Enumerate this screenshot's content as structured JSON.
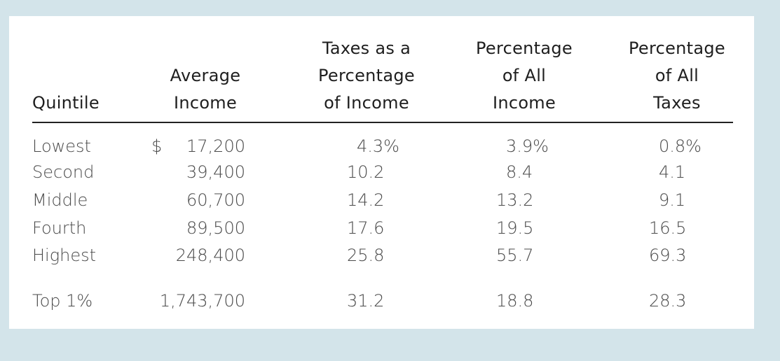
{
  "table": {
    "headers": {
      "quintile": [
        "Quintile"
      ],
      "average_income": [
        "Average",
        "Income"
      ],
      "taxes_pct_income": [
        "Taxes as a",
        "Percentage",
        "of Income"
      ],
      "pct_all_income": [
        "Percentage",
        "of All",
        "Income"
      ],
      "pct_all_taxes": [
        "Percentage",
        "of All",
        "Taxes"
      ]
    },
    "currency_symbol": "$",
    "rows": [
      {
        "quintile": "Lowest",
        "average_income": "17,200",
        "taxes_pct_income": "4.3%",
        "pct_all_income": "3.9%",
        "pct_all_taxes": "0.8%"
      },
      {
        "quintile": "Second",
        "average_income": "39,400",
        "taxes_pct_income": "10.2",
        "pct_all_income": "8.4",
        "pct_all_taxes": "4.1"
      },
      {
        "quintile": "Middle",
        "average_income": "60,700",
        "taxes_pct_income": "14.2",
        "pct_all_income": "13.2",
        "pct_all_taxes": "9.1"
      },
      {
        "quintile": "Fourth",
        "average_income": "89,500",
        "taxes_pct_income": "17.6",
        "pct_all_income": "19.5",
        "pct_all_taxes": "16.5"
      },
      {
        "quintile": "Highest",
        "average_income": "248,400",
        "taxes_pct_income": "25.8",
        "pct_all_income": "55.7",
        "pct_all_taxes": "69.3"
      }
    ],
    "top_row": {
      "quintile": "Top 1%",
      "average_income": "1,743,700",
      "taxes_pct_income": "31.2",
      "pct_all_income": "18.8",
      "pct_all_taxes": "28.3"
    }
  }
}
